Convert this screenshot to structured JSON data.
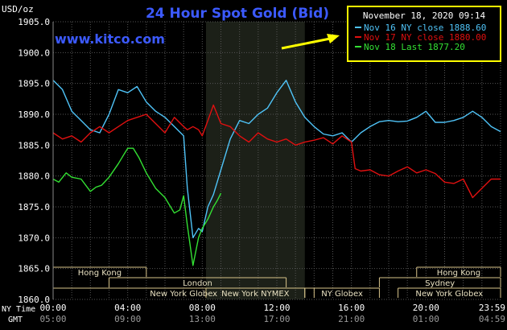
{
  "chart_data": {
    "type": "line",
    "title": "24 Hour Spot Gold (Bid)",
    "ylabel": "USD/oz",
    "ylim": [
      1860.0,
      1905.0
    ],
    "yticks": [
      "1905.0",
      "1900.0",
      "1895.0",
      "1890.0",
      "1885.0",
      "1880.0",
      "1875.0",
      "1870.0",
      "1865.0",
      "1860.0"
    ],
    "watermark": "www.kitco.com",
    "legend": {
      "timestamp": "November 18, 2020 09:14",
      "placement": "top-right",
      "entries": [
        {
          "label": "Nov 16 NY close 1888.60",
          "color": "#4fc3f7"
        },
        {
          "label": "Nov 17 NY close 1880.00",
          "color": "#e01010"
        },
        {
          "label": "Nov 18 Last 1877.20",
          "color": "#33e033"
        }
      ]
    },
    "xaxis": {
      "row1_label": "NY Time",
      "row2_label": "GMT",
      "ny_ticks": [
        "00:00",
        "04:00",
        "08:00",
        "12:00",
        "16:00",
        "20:00",
        "23:59"
      ],
      "gmt_ticks": [
        "05:00",
        "09:00",
        "13:00",
        "17:00",
        "21:00",
        "01:00",
        "04:59"
      ],
      "tick_hours": [
        0,
        4,
        8,
        12,
        16,
        20,
        24
      ]
    },
    "sessions": [
      {
        "name": "Hong Kong",
        "start": 0,
        "end": 5,
        "row": 0
      },
      {
        "name": "London",
        "start": 3,
        "end": 12.5,
        "row": 1
      },
      {
        "name": "New York Globex",
        "start": 0,
        "end": 14,
        "row": 2
      },
      {
        "name": "New York NYMEX",
        "start": 8.2,
        "end": 13.5,
        "row": 2
      },
      {
        "name": "NY Globex",
        "start": 13.5,
        "end": 17.5,
        "row": 2
      },
      {
        "name": "Hong Kong",
        "start": 19.5,
        "end": 24,
        "row": 0
      },
      {
        "name": "Sydney",
        "start": 17.5,
        "end": 24,
        "row": 1
      },
      {
        "name": "New York Globex",
        "start": 18.5,
        "end": 24,
        "row": 2
      }
    ],
    "nymex_shade": [
      8.2,
      13.5
    ],
    "grid": true,
    "series": [
      {
        "name": "Nov 16 NY close 1888.60",
        "color": "#4fc3f7",
        "x": [
          0,
          0.5,
          1,
          1.5,
          2,
          2.5,
          3,
          3.5,
          4,
          4.5,
          5,
          5.5,
          6,
          6.5,
          7,
          7.2,
          7.5,
          7.8,
          8,
          8.3,
          8.6,
          9,
          9.5,
          10,
          10.5,
          11,
          11.5,
          12,
          12.5,
          13,
          13.5,
          14,
          14.5,
          15,
          15.5,
          16,
          16.5,
          17,
          17.5,
          18,
          18.5,
          19,
          19.5,
          20,
          20.5,
          21,
          21.5,
          22,
          22.5,
          23,
          23.5,
          24
        ],
        "y": [
          1895.5,
          1894,
          1890.5,
          1889,
          1887.5,
          1887,
          1890,
          1894,
          1893.5,
          1894.5,
          1892,
          1890.5,
          1889.5,
          1888,
          1886.5,
          1878,
          1870,
          1871.5,
          1871,
          1875,
          1877,
          1881,
          1886,
          1889,
          1888.5,
          1890,
          1891,
          1893.5,
          1895.5,
          1892,
          1889.5,
          1888,
          1886.8,
          1886.5,
          1887,
          1885.5,
          1887,
          1888,
          1888.8,
          1889,
          1888.8,
          1888.9,
          1889.5,
          1890.5,
          1888.7,
          1888.7,
          1889,
          1889.5,
          1890.5,
          1889.5,
          1888,
          1887.2
        ]
      },
      {
        "name": "Nov 17 NY close 1880.00",
        "color": "#e01010",
        "x": [
          0,
          0.5,
          1,
          1.5,
          2,
          2.5,
          3,
          3.5,
          4,
          4.5,
          5,
          5.5,
          6,
          6.5,
          7,
          7.2,
          7.5,
          7.8,
          8,
          8.3,
          8.6,
          9,
          9.5,
          10,
          10.5,
          11,
          11.5,
          12,
          12.5,
          13,
          13.5,
          14,
          14.5,
          15,
          15.5,
          16,
          16.2,
          16.5,
          17,
          17.5,
          18,
          18.5,
          19,
          19.5,
          20,
          20.5,
          21,
          21.5,
          22,
          22.5,
          23,
          23.5,
          24
        ],
        "y": [
          1887,
          1886,
          1886.5,
          1885.5,
          1887,
          1888,
          1887,
          1888,
          1889,
          1889.5,
          1890,
          1888.5,
          1887,
          1889.5,
          1888,
          1887.5,
          1888,
          1887.5,
          1886.5,
          1889,
          1891.5,
          1888.5,
          1888,
          1886.5,
          1885.5,
          1887,
          1886,
          1885.5,
          1886,
          1885,
          1885.5,
          1885.8,
          1886.2,
          1885.2,
          1886.5,
          1885.5,
          1881.2,
          1880.8,
          1881,
          1880.2,
          1880,
          1880.8,
          1881.5,
          1880.5,
          1881,
          1880.4,
          1879,
          1878.8,
          1879.5,
          1876.5,
          1878,
          1879.5,
          1879.5
        ]
      },
      {
        "name": "Nov 18 Last 1877.20",
        "color": "#33e033",
        "x": [
          0,
          0.3,
          0.7,
          1,
          1.5,
          2,
          2.3,
          2.6,
          3,
          3.5,
          3.8,
          4,
          4.3,
          4.6,
          5,
          5.5,
          6,
          6.5,
          6.8,
          7,
          7.2,
          7.5,
          7.8,
          8,
          8.3,
          8.6,
          8.8,
          9
        ],
        "y": [
          1879.5,
          1879,
          1880.5,
          1879.8,
          1879.5,
          1877.5,
          1878.2,
          1878.5,
          1879.8,
          1882,
          1883.5,
          1884.5,
          1884.5,
          1883,
          1880.5,
          1878,
          1876.5,
          1874,
          1874.5,
          1876.8,
          1872,
          1865.5,
          1870,
          1871.5,
          1873,
          1875,
          1876,
          1877.2
        ]
      }
    ]
  }
}
